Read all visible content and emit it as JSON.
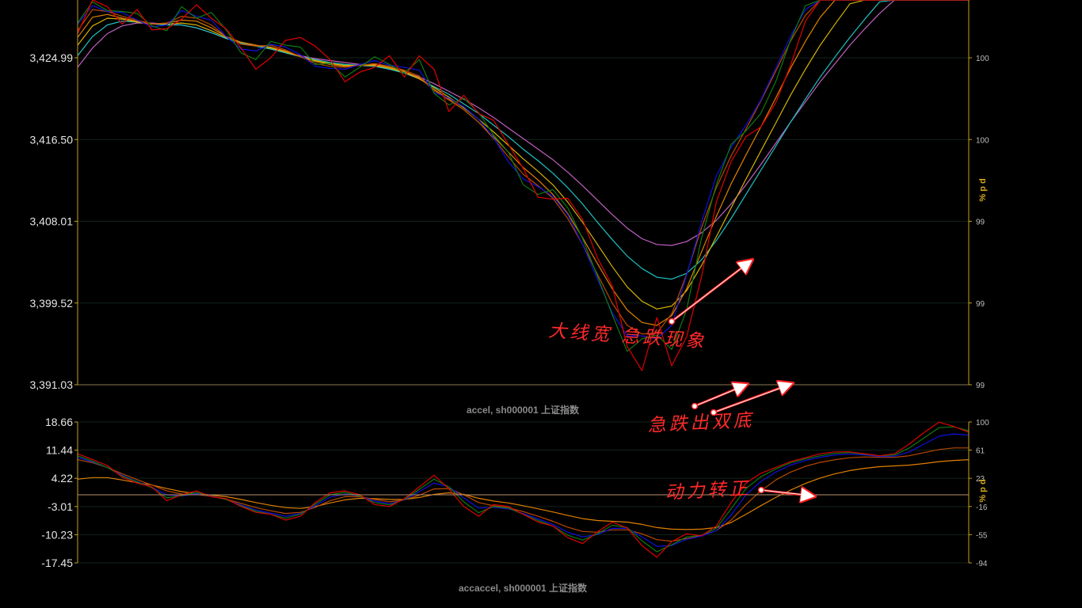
{
  "chart_data": [
    {
      "type": "line",
      "title": "accel, sh000001 上证指数",
      "y_ticks": [
        "3,424.99",
        "3,416.50",
        "3,408.01",
        "3,399.52",
        "3,391.03"
      ],
      "right_ticks": [
        "100",
        "100",
        "99",
        "99",
        "99"
      ],
      "right_unit": "% p d",
      "ylim": [
        3391.03,
        3431
      ],
      "x": [
        0,
        10,
        20,
        30,
        40,
        50,
        60,
        70,
        80,
        90,
        100,
        110,
        120,
        130,
        140,
        150,
        160,
        170,
        180,
        190,
        200,
        210,
        220,
        230,
        240,
        250,
        260,
        270,
        280,
        290,
        300,
        310,
        320,
        330,
        340,
        350,
        360,
        370,
        380,
        390,
        400,
        410,
        420,
        430,
        440,
        450,
        460,
        470,
        480,
        490,
        500,
        510,
        520,
        530,
        540,
        550,
        560,
        570,
        580,
        590,
        600
      ],
      "series": [
        {
          "color": "#e00000",
          "values": [
            3427.5,
            3431.0,
            3430.3,
            3428.5,
            3430.0,
            3427.9,
            3428.0,
            3429.0,
            3430.5,
            3429.1,
            3428.0,
            3426.0,
            3423.8,
            3425.0,
            3426.8,
            3427.1,
            3426.2,
            3424.8,
            3422.5,
            3423.5,
            3424.0,
            3425.2,
            3423.0,
            3425.2,
            3423.8,
            3419.4,
            3421.1,
            3419.2,
            3418.5,
            3416.0,
            3413.5,
            3410.5,
            3410.3,
            3410.4,
            3408.2,
            3404.2,
            3401.3,
            3395.0,
            3392.5,
            3398.0,
            3393.0,
            3396.0,
            3402.2,
            3410.0,
            3414.2,
            3416.8,
            3417.8,
            3420.3,
            3424.2,
            3428.8,
            3431.7,
            3434.0,
            3436.0,
            3438.0,
            3440.0,
            3442.0,
            3443.5,
            3444.0,
            3444.5,
            3444.5,
            3444.5
          ]
        },
        {
          "color": "#0d7a0d",
          "values": [
            3428.6,
            3430.8,
            3429.9,
            3429.8,
            3429.6,
            3428.3,
            3427.8,
            3430.3,
            3429.1,
            3429.7,
            3427.9,
            3425.5,
            3424.8,
            3426.7,
            3426.3,
            3426.1,
            3424.3,
            3424.4,
            3423.0,
            3424.0,
            3425.1,
            3424.3,
            3423.4,
            3424.8,
            3421.3,
            3420.1,
            3420.8,
            3419.3,
            3417.0,
            3415.2,
            3411.8,
            3410.8,
            3411.3,
            3409.4,
            3406.2,
            3402.3,
            3398.3,
            3394.5,
            3395.8,
            3396.2,
            3394.7,
            3398.8,
            3406.2,
            3411.8,
            3416.0,
            3417.4,
            3419.2,
            3422.5,
            3426.8,
            3430.4,
            3433.0,
            3435.0,
            3437.0,
            3439.0,
            3441.0,
            3443.0,
            3444.0,
            3444.0,
            3444.0,
            3444.0,
            3444.0
          ]
        },
        {
          "color": "#1010e0",
          "values": [
            3428.5,
            3430.4,
            3429.8,
            3429.7,
            3428.9,
            3428.2,
            3428.4,
            3429.9,
            3429.3,
            3428.9,
            3427.2,
            3425.9,
            3425.7,
            3426.4,
            3426.1,
            3425.3,
            3424.1,
            3423.9,
            3423.8,
            3424.3,
            3424.7,
            3424.2,
            3424.0,
            3423.7,
            3421.4,
            3420.8,
            3419.9,
            3418.6,
            3416.7,
            3414.2,
            3412.4,
            3411.6,
            3410.6,
            3408.7,
            3405.6,
            3402.0,
            3398.5,
            3396.1,
            3396.1,
            3395.8,
            3397.2,
            3402.4,
            3407.9,
            3412.7,
            3415.7,
            3418.0,
            3420.6,
            3423.9,
            3427.2,
            3430.0,
            3432.5,
            3434.5,
            3436.5,
            3438.5,
            3440.3,
            3441.8,
            3443.0,
            3443.5,
            3443.5,
            3443.5,
            3443.5
          ]
        },
        {
          "color": "#b84a00",
          "values": [
            3427.8,
            3430.0,
            3429.8,
            3429.3,
            3428.9,
            3428.5,
            3428.6,
            3429.3,
            3429.1,
            3428.4,
            3427.2,
            3426.4,
            3426.2,
            3426.3,
            3425.8,
            3425.1,
            3424.4,
            3424.1,
            3424.0,
            3424.2,
            3424.4,
            3424.1,
            3423.7,
            3423.1,
            3421.6,
            3420.6,
            3419.6,
            3418.3,
            3416.6,
            3414.7,
            3412.9,
            3411.7,
            3410.4,
            3408.3,
            3405.6,
            3402.5,
            3399.5,
            3397.2,
            3396.3,
            3396.4,
            3398.4,
            3402.5,
            3407.3,
            3411.5,
            3414.8,
            3417.6,
            3420.5,
            3423.6,
            3426.7,
            3429.4,
            3431.8,
            3433.9,
            3435.9,
            3437.8,
            3439.5,
            3441.0,
            3442.2,
            3443.0,
            3443.3,
            3443.4,
            3443.4
          ]
        },
        {
          "color": "#e08000",
          "values": [
            3427.1,
            3429.2,
            3429.5,
            3429.1,
            3428.8,
            3428.5,
            3428.6,
            3428.9,
            3428.8,
            3428.1,
            3427.2,
            3426.6,
            3426.3,
            3426.1,
            3425.7,
            3425.1,
            3424.6,
            3424.3,
            3424.1,
            3424.2,
            3424.3,
            3424.0,
            3423.6,
            3422.9,
            3421.7,
            3420.7,
            3419.6,
            3418.3,
            3416.8,
            3415.2,
            3413.6,
            3412.3,
            3410.8,
            3408.8,
            3406.3,
            3403.6,
            3401.0,
            3398.8,
            3397.5,
            3397.2,
            3398.2,
            3401.0,
            3404.8,
            3408.5,
            3411.9,
            3414.9,
            3417.8,
            3420.8,
            3423.9,
            3426.7,
            3429.2,
            3431.4,
            3433.4,
            3435.4,
            3437.2,
            3438.8,
            3440.2,
            3441.2,
            3441.8,
            3442.2,
            3442.4
          ]
        },
        {
          "color": "#d4b300",
          "values": [
            3426.3,
            3428.3,
            3429.1,
            3429.0,
            3428.7,
            3428.5,
            3428.5,
            3428.6,
            3428.4,
            3427.8,
            3427.1,
            3426.6,
            3426.3,
            3426.0,
            3425.6,
            3425.1,
            3424.7,
            3424.4,
            3424.2,
            3424.2,
            3424.2,
            3423.9,
            3423.5,
            3422.8,
            3421.9,
            3420.9,
            3419.8,
            3418.6,
            3417.3,
            3415.9,
            3414.5,
            3413.2,
            3411.8,
            3410.0,
            3407.9,
            3405.6,
            3403.3,
            3401.2,
            3399.7,
            3398.9,
            3399.2,
            3400.8,
            3403.4,
            3406.4,
            3409.4,
            3412.4,
            3415.3,
            3418.2,
            3421.1,
            3423.8,
            3426.3,
            3428.5,
            3430.6,
            3432.6,
            3434.4,
            3436.0,
            3437.5,
            3438.7,
            3439.6,
            3440.2,
            3440.6
          ]
        },
        {
          "color": "#20c0c0",
          "values": [
            3425.2,
            3427.2,
            3428.4,
            3428.8,
            3428.7,
            3428.5,
            3428.4,
            3428.4,
            3428.1,
            3427.6,
            3427.0,
            3426.5,
            3426.2,
            3425.9,
            3425.5,
            3425.1,
            3424.8,
            3424.5,
            3424.3,
            3424.2,
            3424.1,
            3423.8,
            3423.4,
            3422.8,
            3422.0,
            3421.2,
            3420.2,
            3419.2,
            3418.0,
            3416.8,
            3415.5,
            3414.3,
            3413.0,
            3411.5,
            3409.8,
            3407.9,
            3406.1,
            3404.4,
            3403.1,
            3402.2,
            3402.0,
            3402.6,
            3404.0,
            3406.0,
            3408.3,
            3410.8,
            3413.3,
            3415.8,
            3418.3,
            3420.7,
            3423.0,
            3425.1,
            3427.1,
            3429.0,
            3430.8,
            3432.4,
            3433.9,
            3435.2,
            3436.3,
            3437.1,
            3437.6
          ]
        },
        {
          "color": "#c060c0",
          "values": [
            3424.0,
            3426.0,
            3427.5,
            3428.3,
            3428.6,
            3428.6,
            3428.5,
            3428.4,
            3428.1,
            3427.6,
            3427.0,
            3426.6,
            3426.2,
            3425.9,
            3425.6,
            3425.2,
            3424.9,
            3424.7,
            3424.5,
            3424.3,
            3424.2,
            3423.9,
            3423.5,
            3423.0,
            3422.3,
            3421.5,
            3420.7,
            3419.8,
            3418.8,
            3417.7,
            3416.6,
            3415.5,
            3414.4,
            3413.1,
            3411.7,
            3410.2,
            3408.7,
            3407.3,
            3406.2,
            3405.6,
            3405.5,
            3405.9,
            3406.8,
            3408.1,
            3409.8,
            3411.8,
            3413.9,
            3416.1,
            3418.3,
            3420.4,
            3422.5,
            3424.4,
            3426.3,
            3428.0,
            3429.6,
            3431.1,
            3432.5,
            3433.7,
            3434.8,
            3435.6,
            3436.2
          ]
        }
      ]
    },
    {
      "type": "line",
      "title": "accaccel, sh000001 上证指数",
      "y_ticks": [
        "18.66",
        "11.44",
        "4.22",
        "-3.01",
        "-10.23",
        "-17.45"
      ],
      "right_ticks": [
        "100",
        "61",
        "23",
        "-16",
        "-55",
        "-94"
      ],
      "right_unit": "% p d",
      "ylim": [
        -17.45,
        18.66
      ],
      "zero_line": 0,
      "x": [
        0,
        10,
        20,
        30,
        40,
        50,
        60,
        70,
        80,
        90,
        100,
        110,
        120,
        130,
        140,
        150,
        160,
        170,
        180,
        190,
        200,
        210,
        220,
        230,
        240,
        250,
        260,
        270,
        280,
        290,
        300,
        310,
        320,
        330,
        340,
        350,
        360,
        370,
        380,
        390,
        400,
        410,
        420,
        430,
        440,
        450,
        460,
        470,
        480,
        490,
        500,
        510,
        520,
        530,
        540,
        550,
        560,
        570,
        580,
        590,
        600
      ],
      "series": [
        {
          "color": "#e00000",
          "values": [
            10.5,
            9.0,
            7.5,
            4.5,
            3.0,
            2.0,
            -1.5,
            0.0,
            1.0,
            -0.5,
            -1.0,
            -3.0,
            -4.5,
            -5.0,
            -6.5,
            -5.5,
            -2.0,
            0.5,
            1.0,
            0.0,
            -2.5,
            -3.0,
            -1.0,
            2.0,
            5.0,
            1.5,
            -3.0,
            -5.5,
            -2.5,
            -3.0,
            -5.0,
            -7.0,
            -8.0,
            -11.0,
            -12.5,
            -9.5,
            -7.0,
            -8.5,
            -13.0,
            -16.0,
            -12.0,
            -10.0,
            -10.5,
            -8.0,
            -2.0,
            3.0,
            5.5,
            7.0,
            8.5,
            9.5,
            10.5,
            11.0,
            11.0,
            10.5,
            10.0,
            10.5,
            13.0,
            16.0,
            18.6,
            17.5,
            16.0
          ]
        },
        {
          "color": "#0d7a0d",
          "values": [
            10.0,
            8.6,
            7.0,
            4.8,
            3.3,
            1.8,
            -0.8,
            -0.2,
            0.6,
            -0.4,
            -1.2,
            -2.8,
            -4.2,
            -5.0,
            -6.0,
            -5.0,
            -2.4,
            0.0,
            0.6,
            -0.3,
            -2.0,
            -2.6,
            -1.2,
            1.4,
            4.0,
            2.0,
            -1.8,
            -4.6,
            -3.0,
            -3.4,
            -5.0,
            -6.6,
            -8.0,
            -10.4,
            -11.6,
            -10.0,
            -7.8,
            -8.4,
            -11.8,
            -14.6,
            -12.8,
            -10.8,
            -10.4,
            -8.6,
            -3.6,
            1.6,
            4.6,
            6.6,
            8.2,
            9.2,
            10.0,
            10.6,
            10.8,
            10.4,
            10.0,
            10.2,
            12.0,
            14.6,
            17.2,
            17.4,
            16.4
          ]
        },
        {
          "color": "#1010e0",
          "values": [
            9.6,
            8.4,
            7.0,
            5.0,
            3.4,
            1.9,
            0.0,
            -0.3,
            0.3,
            -0.3,
            -1.2,
            -2.6,
            -3.9,
            -4.7,
            -5.5,
            -4.8,
            -2.8,
            -0.6,
            0.2,
            -0.3,
            -1.6,
            -2.3,
            -1.3,
            0.8,
            3.0,
            2.0,
            -0.8,
            -3.4,
            -3.2,
            -3.6,
            -4.8,
            -6.2,
            -7.6,
            -9.6,
            -10.8,
            -10.2,
            -8.6,
            -8.6,
            -10.8,
            -13.2,
            -13.0,
            -11.4,
            -10.6,
            -9.2,
            -5.2,
            0.0,
            3.4,
            5.8,
            7.6,
            8.8,
            9.6,
            10.2,
            10.4,
            10.2,
            9.8,
            9.9,
            11.0,
            13.0,
            15.0,
            15.6,
            15.3
          ]
        },
        {
          "color": "#b84a00",
          "values": [
            9.0,
            8.2,
            7.0,
            5.4,
            3.9,
            2.5,
            1.0,
            0.2,
            0.1,
            -0.4,
            -1.1,
            -2.2,
            -3.3,
            -4.1,
            -4.8,
            -4.5,
            -3.2,
            -1.5,
            -0.5,
            -0.5,
            -1.2,
            -1.8,
            -1.3,
            -0.1,
            1.5,
            1.6,
            0.0,
            -2.0,
            -2.8,
            -3.3,
            -4.3,
            -5.5,
            -6.8,
            -8.3,
            -9.4,
            -9.6,
            -9.0,
            -9.0,
            -10.0,
            -11.5,
            -11.9,
            -11.2,
            -10.5,
            -9.2,
            -6.5,
            -2.5,
            1.0,
            3.8,
            5.8,
            7.3,
            8.3,
            9.0,
            9.5,
            9.7,
            9.6,
            9.6,
            10.0,
            10.8,
            11.6,
            12.0,
            12.0
          ]
        },
        {
          "color": "#e08000",
          "values": [
            4.0,
            4.4,
            4.4,
            3.8,
            3.1,
            2.5,
            1.6,
            0.8,
            0.3,
            -0.1,
            -0.5,
            -1.2,
            -2.0,
            -2.7,
            -3.3,
            -3.5,
            -3.0,
            -2.1,
            -1.3,
            -0.9,
            -1.0,
            -1.2,
            -1.2,
            -0.7,
            0.1,
            0.5,
            0.1,
            -0.9,
            -1.6,
            -2.1,
            -2.8,
            -3.6,
            -4.4,
            -5.3,
            -6.1,
            -6.6,
            -6.8,
            -7.0,
            -7.6,
            -8.4,
            -8.8,
            -8.9,
            -8.8,
            -8.4,
            -7.1,
            -5.0,
            -2.8,
            -0.7,
            1.2,
            2.9,
            4.3,
            5.4,
            6.2,
            6.8,
            7.2,
            7.4,
            7.6,
            8.0,
            8.5,
            8.8,
            9.0
          ]
        }
      ]
    }
  ],
  "annotations": {
    "wide_fall": "大线宽  急跌现象",
    "double_bottom": "急跌出双底",
    "momentum_positive": "动力转正"
  },
  "colors": {
    "annotation": "#ff2020",
    "accent_axis": "#c8a020",
    "background": "#000000"
  }
}
